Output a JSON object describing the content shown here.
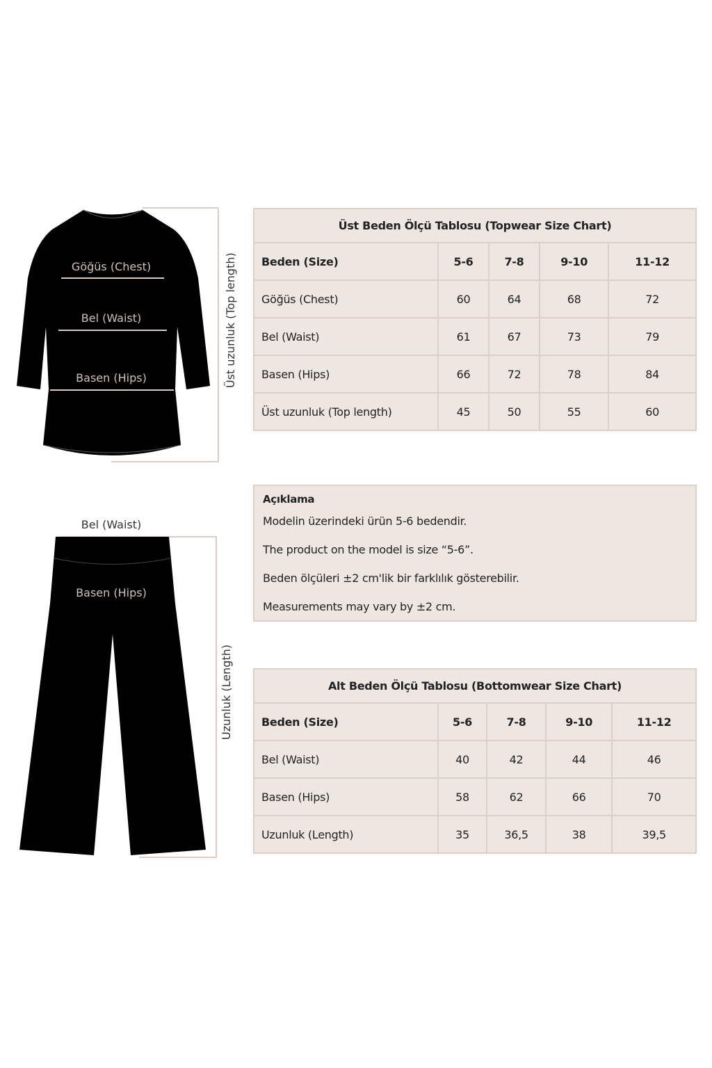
{
  "topwear": {
    "title": "Üst Beden Ölçü Tablosu (Topwear Size Chart)",
    "header": [
      "Beden (Size)",
      "5-6",
      "7-8",
      "9-10",
      "11-12"
    ],
    "rows": [
      [
        "Göğüs (Chest)",
        "60",
        "64",
        "68",
        "72"
      ],
      [
        "Bel (Waist)",
        "61",
        "67",
        "73",
        "79"
      ],
      [
        "Basen (Hips)",
        "66",
        "72",
        "78",
        "84"
      ],
      [
        "Üst uzunluk (Top length)",
        "45",
        "50",
        "55",
        "60"
      ]
    ]
  },
  "note": {
    "title": "Açıklama",
    "lines": [
      "Modelin üzerindeki ürün 5-6 bedendir.",
      "The product on the model is size “5-6”.",
      "Beden ölçüleri ±2 cm'lik bir farklılık gösterebilir.",
      "Measurements may vary by ±2 cm."
    ]
  },
  "bottomwear": {
    "title": "Alt Beden Ölçü Tablosu (Bottomwear Size Chart)",
    "header": [
      "Beden (Size)",
      "5-6",
      "7-8",
      "9-10",
      "11-12"
    ],
    "rows": [
      [
        "Bel (Waist)",
        "40",
        "42",
        "44",
        "46"
      ],
      [
        "Basen (Hips)",
        "58",
        "62",
        "66",
        "70"
      ],
      [
        "Uzunluk (Length)",
        "35",
        "36,5",
        "38",
        "39,5"
      ]
    ]
  },
  "diagram": {
    "top": {
      "chest": "Göğüs (Chest)",
      "waist": "Bel (Waist)",
      "hips": "Basen (Hips)",
      "length": "Üst uzunluk (Top length)"
    },
    "bottom": {
      "waist": "Bel (Waist)",
      "hips": "Basen (Hips)",
      "length": "Uzunluk (Length)"
    }
  }
}
